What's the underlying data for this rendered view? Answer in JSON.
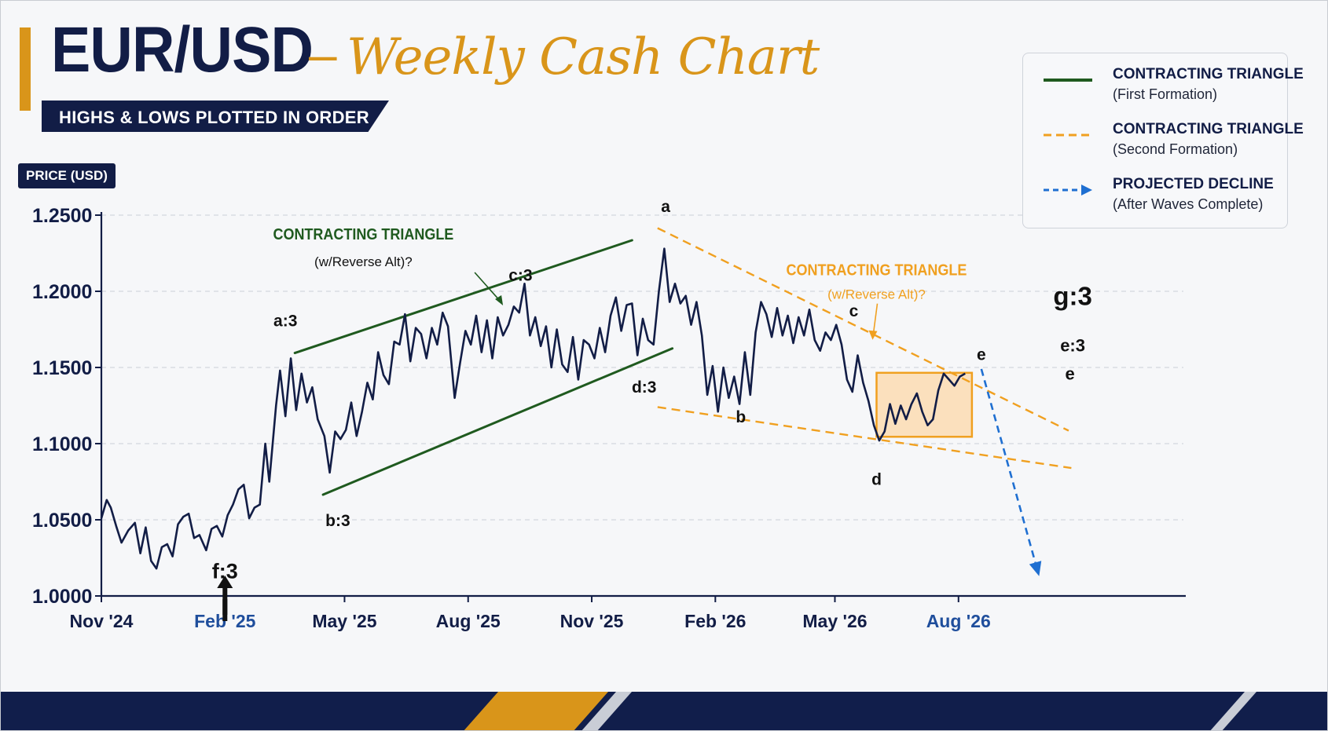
{
  "header": {
    "title": "EUR/USD",
    "dash": "–",
    "script_title": "Weekly Cash Chart",
    "subtitle": "HIGHS & LOWS PLOTTED IN ORDER",
    "y_axis_label": "PRICE (USD)"
  },
  "legend": {
    "items": [
      {
        "title": "CONTRACTING TRIANGLE",
        "subtitle": "(First Formation)",
        "style": "solid",
        "color": "#1f5a1f"
      },
      {
        "title": "CONTRACTING TRIANGLE",
        "subtitle": "(Second Formation)",
        "style": "dashed",
        "color": "#f0a020"
      },
      {
        "title": "PROJECTED DECLINE",
        "subtitle": "(After Waves Complete)",
        "style": "dashed-arrow",
        "color": "#1f6fd1"
      }
    ]
  },
  "colors": {
    "price_line": "#121d46",
    "triangle_1": "#1f5a1f",
    "triangle_2": "#f0a020",
    "projection": "#1f6fd1",
    "accent": "#d9951a",
    "navy": "#111e4b",
    "highlight_box_fill": "#fcd8a8",
    "highlight_box_stroke": "#f0a020"
  },
  "chart_data": {
    "type": "line",
    "title": "EUR/USD – Weekly Cash Chart",
    "subtitle": "HIGHS & LOWS PLOTTED IN ORDER",
    "ylabel": "PRICE (USD)",
    "xlabel": "",
    "ylim": [
      1.0,
      1.25
    ],
    "xlim": [
      "2024-11-01",
      "2026-11-15"
    ],
    "yticks": [
      "1.0000",
      "1.0500",
      "1.1000",
      "1.1500",
      "1.2000",
      "1.2500"
    ],
    "xticks": [
      {
        "date": "2024-11-01",
        "label": "Nov '24",
        "highlight": false
      },
      {
        "date": "2025-02-01",
        "label": "Feb '25",
        "highlight": true
      },
      {
        "date": "2025-05-01",
        "label": "May '25",
        "highlight": false
      },
      {
        "date": "2025-08-01",
        "label": "Aug '25",
        "highlight": false
      },
      {
        "date": "2025-11-01",
        "label": "Nov '25",
        "highlight": false
      },
      {
        "date": "2026-02-01",
        "label": "Feb '26",
        "highlight": false
      },
      {
        "date": "2026-05-01",
        "label": "May '26",
        "highlight": false
      },
      {
        "date": "2026-08-01",
        "label": "Aug '26",
        "highlight": true
      }
    ],
    "grid": true,
    "series": [
      {
        "style": "solid",
        "points": [
          [
            "2024-11-01",
            1.051
          ],
          [
            "2024-11-05",
            1.063
          ],
          [
            "2024-11-08",
            1.058
          ],
          [
            "2024-11-12",
            1.046
          ],
          [
            "2024-11-16",
            1.035
          ],
          [
            "2024-11-21",
            1.043
          ],
          [
            "2024-11-26",
            1.048
          ],
          [
            "2024-11-30",
            1.028
          ],
          [
            "2024-12-04",
            1.045
          ],
          [
            "2024-12-08",
            1.023
          ],
          [
            "2024-12-12",
            1.018
          ],
          [
            "2024-12-16",
            1.032
          ],
          [
            "2024-12-20",
            1.034
          ],
          [
            "2024-12-24",
            1.026
          ],
          [
            "2024-12-28",
            1.047
          ],
          [
            "2025-01-01",
            1.052
          ],
          [
            "2025-01-05",
            1.054
          ],
          [
            "2025-01-09",
            1.038
          ],
          [
            "2025-01-13",
            1.04
          ],
          [
            "2025-01-18",
            1.03
          ],
          [
            "2025-01-22",
            1.044
          ],
          [
            "2025-01-26",
            1.046
          ],
          [
            "2025-01-30",
            1.039
          ],
          [
            "2025-02-03",
            1.053
          ],
          [
            "2025-02-07",
            1.06
          ],
          [
            "2025-02-11",
            1.07
          ],
          [
            "2025-02-15",
            1.073
          ],
          [
            "2025-02-19",
            1.051
          ],
          [
            "2025-02-23",
            1.058
          ],
          [
            "2025-02-27",
            1.06
          ],
          [
            "2025-03-03",
            1.1
          ],
          [
            "2025-03-06",
            1.075
          ],
          [
            "2025-03-11",
            1.125
          ],
          [
            "2025-03-14",
            1.148
          ],
          [
            "2025-03-18",
            1.118
          ],
          [
            "2025-03-22",
            1.156
          ],
          [
            "2025-03-26",
            1.122
          ],
          [
            "2025-03-30",
            1.146
          ],
          [
            "2025-04-03",
            1.127
          ],
          [
            "2025-04-07",
            1.137
          ],
          [
            "2025-04-11",
            1.116
          ],
          [
            "2025-04-16",
            1.105
          ],
          [
            "2025-04-20",
            1.081
          ],
          [
            "2025-04-24",
            1.108
          ],
          [
            "2025-04-28",
            1.103
          ],
          [
            "2025-05-02",
            1.109
          ],
          [
            "2025-05-06",
            1.127
          ],
          [
            "2025-05-10",
            1.105
          ],
          [
            "2025-05-14",
            1.121
          ],
          [
            "2025-05-18",
            1.14
          ],
          [
            "2025-05-22",
            1.129
          ],
          [
            "2025-05-26",
            1.16
          ],
          [
            "2025-05-30",
            1.145
          ],
          [
            "2025-06-03",
            1.139
          ],
          [
            "2025-06-07",
            1.167
          ],
          [
            "2025-06-11",
            1.165
          ],
          [
            "2025-06-15",
            1.185
          ],
          [
            "2025-06-19",
            1.154
          ],
          [
            "2025-06-23",
            1.176
          ],
          [
            "2025-06-27",
            1.172
          ],
          [
            "2025-07-01",
            1.156
          ],
          [
            "2025-07-05",
            1.176
          ],
          [
            "2025-07-09",
            1.165
          ],
          [
            "2025-07-13",
            1.186
          ],
          [
            "2025-07-17",
            1.177
          ],
          [
            "2025-07-22",
            1.13
          ],
          [
            "2025-07-26",
            1.153
          ],
          [
            "2025-07-30",
            1.174
          ],
          [
            "2025-08-03",
            1.165
          ],
          [
            "2025-08-07",
            1.184
          ],
          [
            "2025-08-11",
            1.16
          ],
          [
            "2025-08-15",
            1.181
          ],
          [
            "2025-08-19",
            1.156
          ],
          [
            "2025-08-23",
            1.183
          ],
          [
            "2025-08-27",
            1.171
          ],
          [
            "2025-08-31",
            1.178
          ],
          [
            "2025-09-04",
            1.19
          ],
          [
            "2025-09-08",
            1.186
          ],
          [
            "2025-09-12",
            1.205
          ],
          [
            "2025-09-16",
            1.171
          ],
          [
            "2025-09-20",
            1.183
          ],
          [
            "2025-09-24",
            1.164
          ],
          [
            "2025-09-28",
            1.177
          ],
          [
            "2025-10-02",
            1.15
          ],
          [
            "2025-10-06",
            1.175
          ],
          [
            "2025-10-10",
            1.152
          ],
          [
            "2025-10-14",
            1.147
          ],
          [
            "2025-10-18",
            1.17
          ],
          [
            "2025-10-22",
            1.142
          ],
          [
            "2025-10-26",
            1.168
          ],
          [
            "2025-10-30",
            1.165
          ],
          [
            "2025-11-03",
            1.156
          ],
          [
            "2025-11-07",
            1.176
          ],
          [
            "2025-11-11",
            1.16
          ],
          [
            "2025-11-15",
            1.184
          ],
          [
            "2025-11-19",
            1.196
          ],
          [
            "2025-11-23",
            1.174
          ],
          [
            "2025-11-27",
            1.191
          ],
          [
            "2025-12-01",
            1.192
          ],
          [
            "2025-12-05",
            1.158
          ],
          [
            "2025-12-09",
            1.182
          ],
          [
            "2025-12-13",
            1.168
          ],
          [
            "2025-12-17",
            1.165
          ],
          [
            "2025-12-21",
            1.2
          ],
          [
            "2025-12-25",
            1.228
          ],
          [
            "2025-12-29",
            1.193
          ],
          [
            "2026-01-02",
            1.205
          ],
          [
            "2026-01-06",
            1.192
          ],
          [
            "2026-01-10",
            1.197
          ],
          [
            "2026-01-14",
            1.178
          ],
          [
            "2026-01-18",
            1.193
          ],
          [
            "2026-01-22",
            1.171
          ],
          [
            "2026-01-26",
            1.132
          ],
          [
            "2026-01-30",
            1.151
          ],
          [
            "2026-02-03",
            1.121
          ],
          [
            "2026-02-07",
            1.15
          ],
          [
            "2026-02-11",
            1.13
          ],
          [
            "2026-02-15",
            1.144
          ],
          [
            "2026-02-19",
            1.126
          ],
          [
            "2026-02-23",
            1.16
          ],
          [
            "2026-02-27",
            1.132
          ],
          [
            "2026-03-03",
            1.173
          ],
          [
            "2026-03-07",
            1.193
          ],
          [
            "2026-03-11",
            1.185
          ],
          [
            "2026-03-15",
            1.17
          ],
          [
            "2026-03-19",
            1.189
          ],
          [
            "2026-03-23",
            1.171
          ],
          [
            "2026-03-27",
            1.184
          ],
          [
            "2026-03-31",
            1.166
          ],
          [
            "2026-04-04",
            1.183
          ],
          [
            "2026-04-08",
            1.171
          ],
          [
            "2026-04-12",
            1.188
          ],
          [
            "2026-04-16",
            1.168
          ],
          [
            "2026-04-20",
            1.161
          ],
          [
            "2026-04-24",
            1.173
          ],
          [
            "2026-04-28",
            1.168
          ],
          [
            "2026-05-02",
            1.178
          ],
          [
            "2026-05-06",
            1.165
          ],
          [
            "2026-05-10",
            1.142
          ],
          [
            "2026-05-14",
            1.134
          ],
          [
            "2026-05-18",
            1.158
          ],
          [
            "2026-05-22",
            1.14
          ],
          [
            "2026-05-26",
            1.128
          ],
          [
            "2026-05-30",
            1.112
          ],
          [
            "2026-06-03",
            1.102
          ],
          [
            "2026-06-07",
            1.108
          ],
          [
            "2026-06-11",
            1.126
          ],
          [
            "2026-06-15",
            1.113
          ],
          [
            "2026-06-19",
            1.125
          ],
          [
            "2026-06-23",
            1.116
          ],
          [
            "2026-06-27",
            1.126
          ],
          [
            "2026-07-01",
            1.133
          ],
          [
            "2026-07-05",
            1.121
          ],
          [
            "2026-07-09",
            1.112
          ],
          [
            "2026-07-13",
            1.116
          ],
          [
            "2026-07-17",
            1.135
          ],
          [
            "2026-07-21",
            1.146
          ],
          [
            "2026-07-25",
            1.142
          ],
          [
            "2026-07-29",
            1.138
          ],
          [
            "2026-08-02",
            1.144
          ],
          [
            "2026-08-06",
            1.146
          ]
        ]
      }
    ],
    "overlays": [
      {
        "style": "solid",
        "color_key": "triangle_1",
        "from": [
          "2025-03-25",
          1.1595
        ],
        "to": [
          "2025-12-01",
          1.2335
        ]
      },
      {
        "style": "solid",
        "color_key": "triangle_1",
        "from": [
          "2025-04-15",
          1.0665
        ],
        "to": [
          "2025-12-31",
          1.1625
        ]
      },
      {
        "style": "dashed",
        "color_key": "triangle_2",
        "from": [
          "2025-12-20",
          1.2415
        ],
        "to": [
          "2026-10-22",
          1.1085
        ]
      },
      {
        "style": "dashed",
        "color_key": "triangle_2",
        "from": [
          "2025-12-20",
          1.124
        ],
        "to": [
          "2026-10-24",
          1.084
        ]
      },
      {
        "style": "dashed-arrow",
        "color_key": "projection",
        "from": [
          "2026-08-18",
          1.149
        ],
        "to": [
          "2026-09-30",
          1.013
        ]
      }
    ],
    "highlight_box": {
      "from": [
        "2026-06-01",
        1.1045
      ],
      "to": [
        "2026-08-11",
        1.1465
      ]
    },
    "annotations": [
      {
        "text": "CONTRACTING TRIANGLE",
        "color_key": "triangle_1",
        "bold": true,
        "size": 20,
        "at": [
          "2025-05-15",
          1.234
        ]
      },
      {
        "text": "(w/Reverse Alt)?",
        "color_key": "text",
        "bold": false,
        "size": 17,
        "at": [
          "2025-05-15",
          1.2165
        ]
      },
      {
        "text": "a:3",
        "color_key": "text",
        "bold": true,
        "size": 21,
        "at": [
          "2025-03-18",
          1.177
        ]
      },
      {
        "text": "b:3",
        "color_key": "text",
        "bold": true,
        "size": 21,
        "at": [
          "2025-04-26",
          1.046
        ]
      },
      {
        "text": "c:3",
        "color_key": "text",
        "bold": true,
        "size": 21,
        "at": [
          "2025-09-09",
          1.207
        ]
      },
      {
        "text": "d:3",
        "color_key": "text",
        "bold": true,
        "size": 21,
        "at": [
          "2025-12-10",
          1.1335
        ]
      },
      {
        "text": "a",
        "color_key": "text",
        "bold": true,
        "size": 21,
        "at": [
          "2025-12-26",
          1.252
        ]
      },
      {
        "text": "b",
        "color_key": "text",
        "bold": true,
        "size": 21,
        "at": [
          "2026-02-20",
          1.114
        ]
      },
      {
        "text": "c",
        "color_key": "text",
        "bold": true,
        "size": 21,
        "at": [
          "2026-05-15",
          1.1835
        ]
      },
      {
        "text": "d",
        "color_key": "text",
        "bold": true,
        "size": 21,
        "at": [
          "2026-06-01",
          1.073
        ]
      },
      {
        "text": "e",
        "color_key": "text",
        "bold": true,
        "size": 21,
        "at": [
          "2026-08-18",
          1.155
        ]
      },
      {
        "text": "CONTRACTING TRIANGLE",
        "color_key": "triangle_2",
        "bold": true,
        "size": 20,
        "at": [
          "2026-06-01",
          1.2105
        ]
      },
      {
        "text": "(w/Reverse Alt)?",
        "color_key": "triangle_2",
        "bold": false,
        "size": 17,
        "at": [
          "2026-06-01",
          1.195
        ]
      },
      {
        "text": "g:3",
        "color_key": "text",
        "bold": true,
        "size": 33,
        "at": [
          "2026-10-25",
          1.191
        ]
      },
      {
        "text": "e:3",
        "color_key": "text",
        "bold": true,
        "size": 22,
        "at": [
          "2026-10-25",
          1.1605
        ]
      },
      {
        "text": "e",
        "color_key": "text",
        "bold": true,
        "size": 22,
        "at": [
          "2026-10-23",
          1.142
        ]
      },
      {
        "text": "f:3",
        "color_key": "text",
        "bold": true,
        "size": 27,
        "at": [
          "2025-02-01",
          1.0115
        ]
      }
    ]
  }
}
